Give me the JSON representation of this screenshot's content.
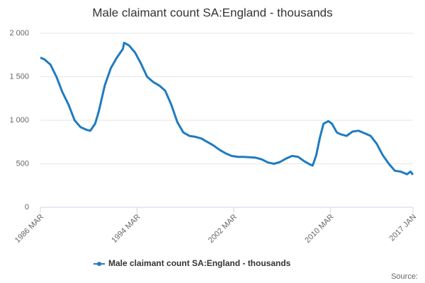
{
  "chart_data": {
    "type": "line",
    "title": "Male claimant count SA:England - thousands",
    "x": [
      1986.17,
      1986.5,
      1987.0,
      1987.5,
      1988.0,
      1988.5,
      1989.0,
      1989.5,
      1990.0,
      1990.3,
      1990.7,
      1991.0,
      1991.5,
      1992.0,
      1992.5,
      1993.0,
      1993.1,
      1993.5,
      1994.0,
      1994.5,
      1995.0,
      1995.5,
      1996.0,
      1996.5,
      1997.0,
      1997.5,
      1998.0,
      1998.5,
      1999.0,
      1999.5,
      2000.0,
      2000.5,
      2001.0,
      2001.5,
      2002.0,
      2002.5,
      2003.0,
      2003.5,
      2004.0,
      2004.5,
      2005.0,
      2005.5,
      2006.0,
      2006.5,
      2007.0,
      2007.5,
      2008.0,
      2008.5,
      2008.7,
      2009.0,
      2009.3,
      2009.6,
      2010.0,
      2010.3,
      2010.7,
      2011.0,
      2011.5,
      2012.0,
      2012.5,
      2013.0,
      2013.5,
      2014.0,
      2014.5,
      2015.0,
      2015.5,
      2016.0,
      2016.5,
      2016.8,
      2017.0
    ],
    "series": [
      {
        "name": "Male claimant count SA:England - thousands",
        "color": "#1f7bc1",
        "values": [
          1720,
          1700,
          1640,
          1500,
          1320,
          1180,
          1000,
          920,
          890,
          880,
          960,
          1100,
          1400,
          1600,
          1720,
          1820,
          1890,
          1860,
          1780,
          1650,
          1500,
          1440,
          1400,
          1340,
          1180,
          980,
          860,
          820,
          810,
          790,
          750,
          710,
          660,
          620,
          590,
          580,
          580,
          575,
          570,
          550,
          515,
          500,
          520,
          560,
          590,
          580,
          530,
          490,
          480,
          600,
          800,
          960,
          990,
          960,
          860,
          840,
          820,
          870,
          880,
          850,
          820,
          730,
          600,
          500,
          420,
          410,
          380,
          410,
          375
        ]
      }
    ],
    "xlim": [
      1986.17,
      2017.0
    ],
    "xticks": [
      {
        "value": 1986.17,
        "label": "1986 MAR"
      },
      {
        "value": 1994.17,
        "label": "1994 MAR"
      },
      {
        "value": 2002.17,
        "label": "2002 MAR"
      },
      {
        "value": 2010.17,
        "label": "2010 MAR"
      },
      {
        "value": 2017.0,
        "label": "2017 JAN"
      }
    ],
    "ylim": [
      0,
      2000
    ],
    "yticks": [
      0,
      500,
      {
        "value": 1000,
        "label": "1 000"
      },
      {
        "value": 1500,
        "label": "1 500"
      },
      {
        "value": 2000,
        "label": "2 000"
      }
    ],
    "grid": true,
    "source": "Source:"
  }
}
